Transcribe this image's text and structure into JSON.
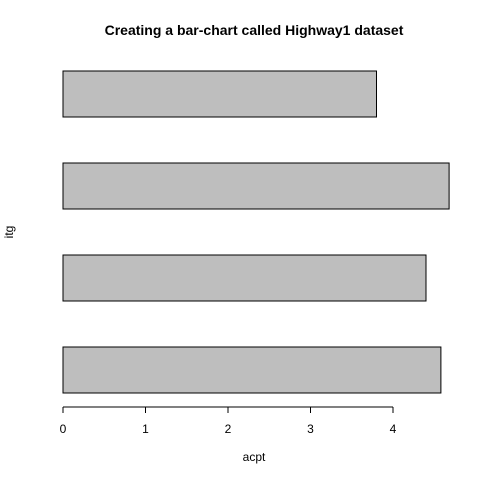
{
  "chart_data": {
    "type": "bar",
    "orientation": "horizontal",
    "title": "Creating a bar-chart called Highway1 dataset",
    "xlabel": "acpt",
    "ylabel": "itg",
    "categories": [
      "",
      "",
      "",
      ""
    ],
    "values": [
      4.58,
      4.4,
      4.68,
      3.8
    ],
    "xlim": [
      0,
      4.68
    ],
    "x_ticks": [
      0,
      1,
      2,
      3,
      4
    ],
    "grid": false,
    "legend": "none",
    "bar_fill": "#bebebe",
    "bar_stroke": "#000000"
  }
}
